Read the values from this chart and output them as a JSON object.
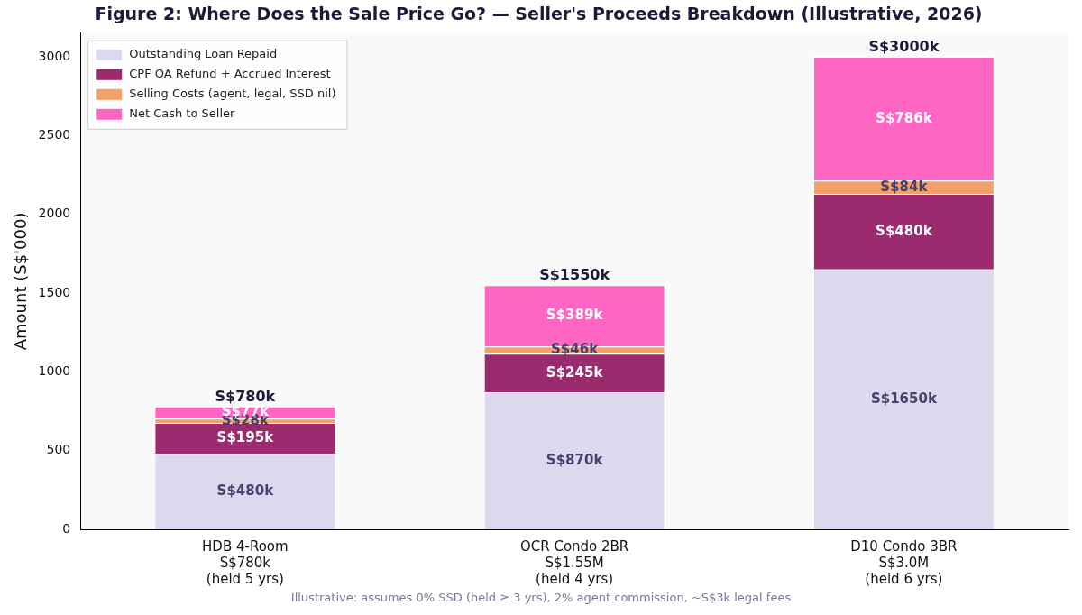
{
  "chart_data": {
    "type": "bar",
    "title": "Figure 2: Where Does the Sale Price Go? — Seller's Proceeds Breakdown (Illustrative, 2026)",
    "ylabel": "Amount (S$'000)",
    "categories": [
      "HDB 4-Room\nS$780k\n(held 5 yrs)",
      "OCR Condo 2BR\nS$1.55M\n(held 4 yrs)",
      "D10 Condo 3BR\nS$3.0M\n(held 6 yrs)"
    ],
    "stacked": true,
    "series": [
      {
        "name": "Outstanding Loan Repaid",
        "color": "#dcd9ee",
        "values": [
          480,
          870,
          1650
        ],
        "value_labels": [
          "S$480k",
          "S$870k",
          "S$1650k"
        ]
      },
      {
        "name": "CPF OA Refund + Accrued Interest",
        "color": "#9b2a6e",
        "values": [
          195,
          245,
          480
        ],
        "value_labels": [
          "S$195k",
          "S$245k",
          "S$480k"
        ]
      },
      {
        "name": "Selling Costs (agent, legal, SSD nil)",
        "color": "#f4a06a",
        "values": [
          28,
          46,
          84
        ],
        "value_labels": [
          "S$28k",
          "S$46k",
          "S$84k"
        ]
      },
      {
        "name": "Net Cash to Seller",
        "color": "#ff66c4",
        "values": [
          77,
          389,
          786
        ],
        "value_labels": [
          "S$77k",
          "S$389k",
          "S$786k"
        ]
      }
    ],
    "totals": [
      "S$780k",
      "S$1550k",
      "S$3000k"
    ],
    "ylim": [
      0,
      3150
    ],
    "yticks": [
      0,
      500,
      1000,
      1500,
      2000,
      2500,
      3000
    ],
    "grid": false,
    "legend": "top left",
    "annotations": [
      "Illustrative: assumes 0% SSD (held ≥ 3 yrs), 2% agent commission, ~S$3k legal fees"
    ]
  }
}
